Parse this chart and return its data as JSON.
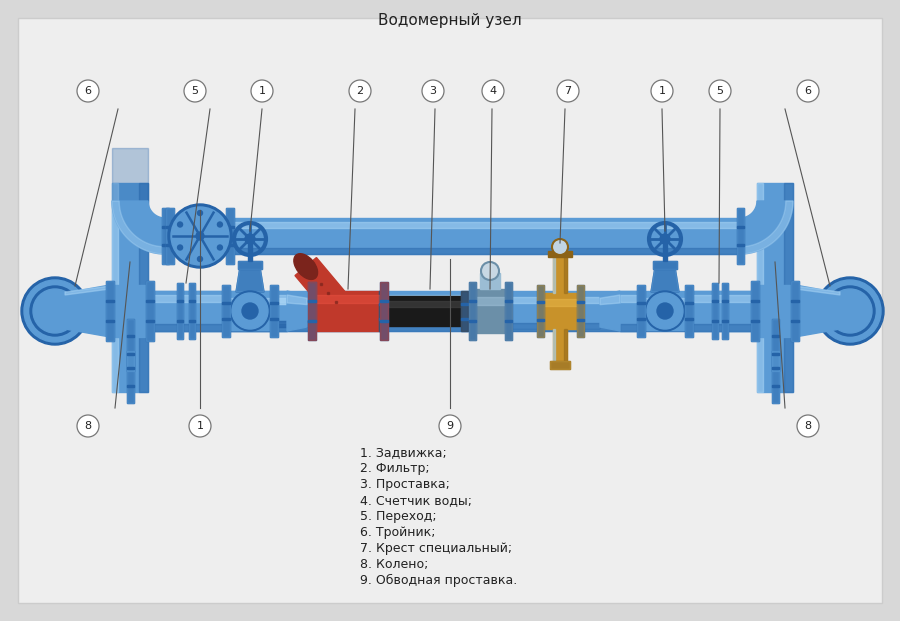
{
  "title": "Водомерный узел",
  "title_fontsize": 11,
  "bg_color": "#d8d8d8",
  "panel_bg": "#eeeeee",
  "pipe_blue": "#5b9bd5",
  "pipe_blue_dark": "#2563a8",
  "pipe_blue_light": "#a8d4f5",
  "pipe_blue_mid": "#4a8fc7",
  "filter_red": "#c0392b",
  "filter_red_dark": "#7b241c",
  "spacer_dark": "#1a1a1a",
  "spacer_mid": "#444444",
  "brass": "#c8922a",
  "brass_dark": "#8b6318",
  "brass_light": "#e8b84b",
  "text_dark": "#222222",
  "legend_items": [
    "1. Задвижка;",
    "2. Фильтр;",
    "3. Проставка;",
    "4. Счетчик воды;",
    "5. Переход;",
    "6. Тройник;",
    "7. Крест специальный;",
    "8. Колено;",
    "9. Обводная проставка."
  ]
}
